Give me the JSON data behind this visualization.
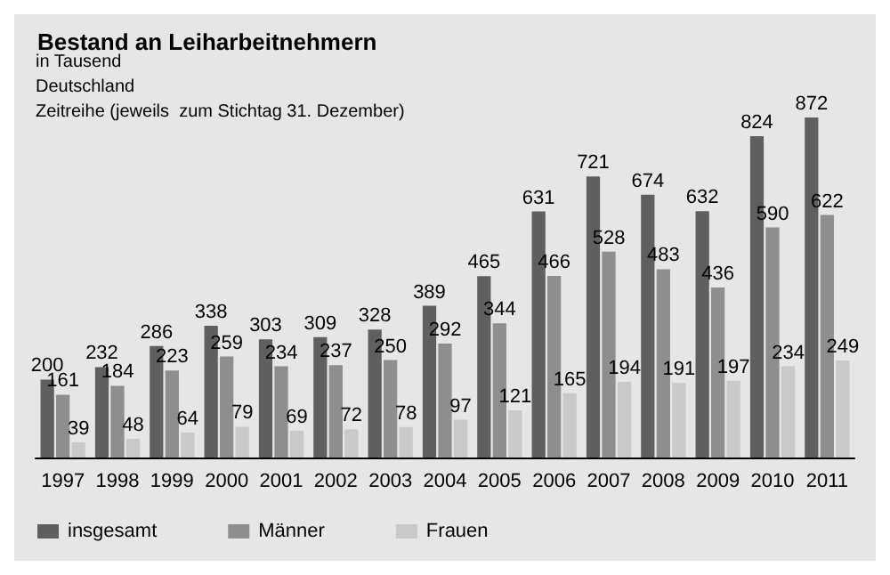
{
  "chart_data": {
    "type": "bar",
    "title": "Bestand an Leiharbeitnehmern",
    "subtitle": "in Tausend",
    "annotations": [
      "Deutschland",
      "Zeitreihe (jeweils  zum Stichtag 31. Dezember)"
    ],
    "categories": [
      "1997",
      "1998",
      "1999",
      "2000",
      "2001",
      "2002",
      "2003",
      "2004",
      "2005",
      "2006",
      "2007",
      "2008",
      "2009",
      "2010",
      "2011"
    ],
    "series": [
      {
        "name": "insgesamt",
        "color": "#5f5f5f",
        "values": [
          200,
          232,
          286,
          338,
          303,
          309,
          328,
          389,
          465,
          631,
          721,
          674,
          632,
          824,
          872
        ]
      },
      {
        "name": "Männer",
        "color": "#8e8e8e",
        "values": [
          161,
          184,
          223,
          259,
          234,
          237,
          250,
          292,
          344,
          466,
          528,
          483,
          436,
          590,
          622
        ]
      },
      {
        "name": "Frauen",
        "color": "#c9c9c9",
        "values": [
          39,
          48,
          64,
          79,
          69,
          72,
          78,
          97,
          121,
          165,
          194,
          191,
          197,
          234,
          249
        ]
      }
    ],
    "data_labels": true,
    "legend": "bottom"
  }
}
